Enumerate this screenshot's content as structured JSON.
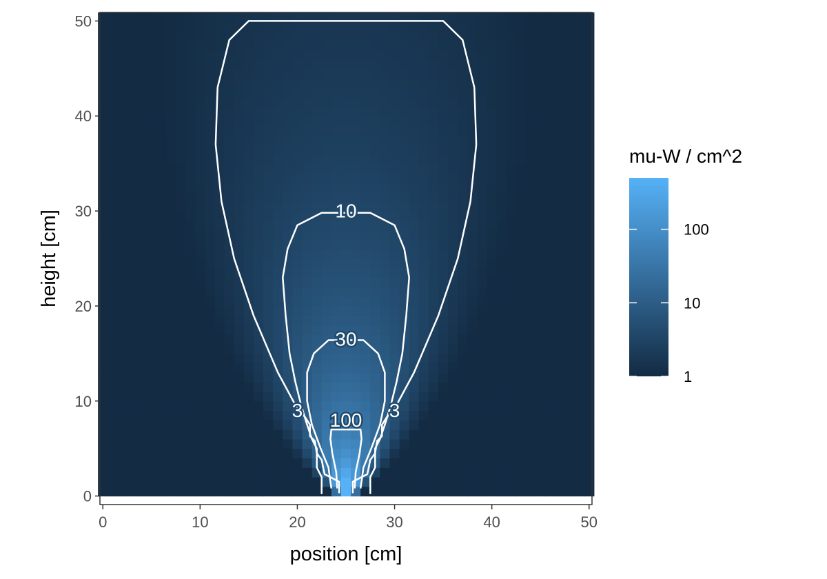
{
  "chart_data": {
    "type": "heatmap",
    "title": "",
    "xlabel": "position [cm]",
    "ylabel": "height [cm]",
    "xlim": [
      0,
      50
    ],
    "ylim": [
      0,
      50
    ],
    "x_ticks": [
      "0",
      "10",
      "20",
      "30",
      "40",
      "50"
    ],
    "y_ticks": [
      "0",
      "10",
      "20",
      "30",
      "40",
      "50"
    ],
    "x_tick_values": [
      0,
      10,
      20,
      30,
      40,
      50
    ],
    "y_tick_values": [
      0,
      10,
      20,
      30,
      40,
      50
    ],
    "grid": false,
    "fill_scale": {
      "title": "mu-W / cm^2",
      "transform": "log10",
      "limits": [
        1,
        500
      ],
      "breaks": [
        1,
        10,
        100
      ],
      "labels": [
        "1",
        "10",
        "100"
      ],
      "low_color": "#132B43",
      "high_color": "#56B1F7"
    },
    "source": {
      "x": 25,
      "y": 0
    },
    "contours": [
      {
        "level": 3,
        "label": "3",
        "label_positions": [
          [
            20,
            9
          ],
          [
            30,
            9
          ]
        ],
        "path": [
          [
            25.7,
            0.3
          ],
          [
            25.7,
            1.5
          ],
          [
            27.2,
            2.3
          ],
          [
            27.5,
            3.8
          ],
          [
            28.0,
            4.5
          ],
          [
            28.2,
            5.8
          ],
          [
            28.7,
            6.3
          ],
          [
            28.7,
            7.5
          ],
          [
            29.2,
            8.3
          ],
          [
            30.0,
            9.2
          ],
          [
            32.0,
            13.0
          ],
          [
            34.5,
            19.0
          ],
          [
            36.5,
            25.0
          ],
          [
            37.8,
            31.0
          ],
          [
            38.4,
            37.0
          ],
          [
            38.2,
            43.0
          ],
          [
            37.0,
            48.0
          ],
          [
            35.0,
            50.0
          ],
          [
            15.0,
            50.0
          ],
          [
            13.0,
            48.0
          ],
          [
            11.8,
            43.0
          ],
          [
            11.6,
            37.0
          ],
          [
            12.2,
            31.0
          ],
          [
            13.5,
            25.0
          ],
          [
            15.5,
            19.0
          ],
          [
            18.0,
            13.0
          ],
          [
            20.0,
            9.2
          ],
          [
            20.8,
            8.3
          ],
          [
            21.3,
            7.5
          ],
          [
            21.3,
            6.3
          ],
          [
            21.8,
            5.8
          ],
          [
            22.0,
            4.5
          ],
          [
            22.5,
            3.8
          ],
          [
            22.8,
            2.3
          ],
          [
            24.3,
            1.5
          ],
          [
            24.3,
            0.3
          ]
        ]
      },
      {
        "level": 10,
        "label": "10",
        "label_positions": [
          [
            25,
            30
          ]
        ],
        "path": [
          [
            27.5,
            0.2
          ],
          [
            27.5,
            2.0
          ],
          [
            28.0,
            3.0
          ],
          [
            28.0,
            5.0
          ],
          [
            28.5,
            6.0
          ],
          [
            29.0,
            7.5
          ],
          [
            29.6,
            9.5
          ],
          [
            30.2,
            12.0
          ],
          [
            30.8,
            15.0
          ],
          [
            31.2,
            19.0
          ],
          [
            31.5,
            23.0
          ],
          [
            31.0,
            26.0
          ],
          [
            30.0,
            28.5
          ],
          [
            27.5,
            29.8
          ],
          [
            22.5,
            29.8
          ],
          [
            20.0,
            28.5
          ],
          [
            19.0,
            26.0
          ],
          [
            18.5,
            23.0
          ],
          [
            18.8,
            19.0
          ],
          [
            19.2,
            15.0
          ],
          [
            19.8,
            12.0
          ],
          [
            20.4,
            9.5
          ],
          [
            21.0,
            7.5
          ],
          [
            21.5,
            6.0
          ],
          [
            22.0,
            5.0
          ],
          [
            22.0,
            3.0
          ],
          [
            22.5,
            2.0
          ],
          [
            22.5,
            0.2
          ]
        ]
      },
      {
        "level": 30,
        "label": "30",
        "label_positions": [
          [
            25,
            16.5
          ]
        ],
        "path": [
          [
            26.5,
            0.8
          ],
          [
            26.8,
            3.0
          ],
          [
            27.6,
            5.0
          ],
          [
            28.5,
            7.5
          ],
          [
            29.0,
            10.0
          ],
          [
            29.0,
            13.0
          ],
          [
            28.3,
            15.0
          ],
          [
            26.8,
            16.4
          ],
          [
            23.2,
            16.4
          ],
          [
            21.7,
            15.0
          ],
          [
            21.0,
            13.0
          ],
          [
            21.0,
            10.0
          ],
          [
            21.5,
            7.5
          ],
          [
            22.4,
            5.0
          ],
          [
            23.2,
            3.0
          ],
          [
            23.5,
            0.8
          ]
        ]
      },
      {
        "level": 100,
        "label": "100",
        "label_positions": [
          [
            25,
            8
          ]
        ],
        "path": [
          [
            25.9,
            0.8
          ],
          [
            26.0,
            2.5
          ],
          [
            26.4,
            4.5
          ],
          [
            26.6,
            6.0
          ],
          [
            26.5,
            7.0
          ],
          [
            23.5,
            7.0
          ],
          [
            23.4,
            6.0
          ],
          [
            23.6,
            4.5
          ],
          [
            24.0,
            2.5
          ],
          [
            24.1,
            0.8
          ]
        ]
      }
    ]
  }
}
